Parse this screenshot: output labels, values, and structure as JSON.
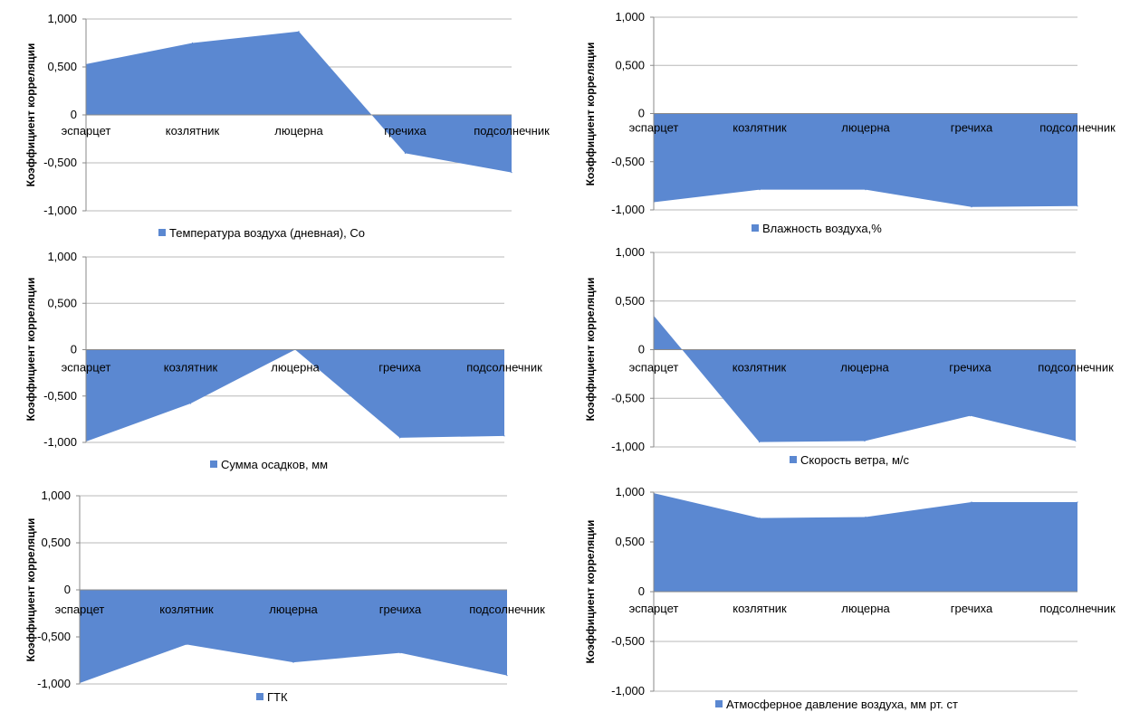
{
  "chart_data": [
    {
      "type": "area",
      "categories": [
        "эспарцет",
        "козлятник",
        "люцерна",
        "гречиха",
        "подсолнечник"
      ],
      "series": [
        {
          "name": "Температура воздуха (дневная), Co",
          "values": [
            0.53,
            0.75,
            0.87,
            -0.4,
            -0.6
          ]
        }
      ],
      "ylabel": "Коэффициент корреляции",
      "ylim": [
        -1,
        1
      ],
      "yticks": [
        "1,000",
        "0,500",
        "0",
        "-0,500",
        "-1,000"
      ],
      "legend": "bottom",
      "color": "#5b88d1"
    },
    {
      "type": "area",
      "categories": [
        "эспарцет",
        "козлятник",
        "люцерна",
        "гречиха",
        "подсолнечник"
      ],
      "series": [
        {
          "name": "Влажность воздуха,%",
          "values": [
            -0.92,
            -0.79,
            -0.79,
            -0.97,
            -0.96
          ]
        }
      ],
      "ylabel": "Коэффициент корреляции",
      "ylim": [
        -1,
        1
      ],
      "yticks": [
        "1,000",
        "0,500",
        "0",
        "-0,500",
        "-1,000"
      ],
      "legend": "bottom",
      "color": "#5b88d1"
    },
    {
      "type": "area",
      "categories": [
        "эспарцет",
        "козлятник",
        "люцерна",
        "гречиха",
        "подсолнечник"
      ],
      "series": [
        {
          "name": "Сумма осадков, мм",
          "values": [
            -0.99,
            -0.58,
            0.0,
            -0.95,
            -0.93
          ]
        }
      ],
      "ylabel": "Коэффициент корреляции",
      "ylim": [
        -1,
        1
      ],
      "yticks": [
        "1,000",
        "0,500",
        "0",
        "-0,500",
        "-1,000"
      ],
      "legend": "bottom",
      "color": "#5b88d1"
    },
    {
      "type": "area",
      "categories": [
        "эспарцет",
        "козлятник",
        "люцерна",
        "гречиха",
        "подсолнечник"
      ],
      "series": [
        {
          "name": "Скорость ветра, м/с",
          "values": [
            0.35,
            -0.95,
            -0.94,
            -0.68,
            -0.94
          ]
        }
      ],
      "ylabel": "Коэффициент корреляции",
      "ylim": [
        -1,
        1
      ],
      "yticks": [
        "1,000",
        "0,500",
        "0",
        "-0,500",
        "-1,000"
      ],
      "legend": "bottom",
      "color": "#5b88d1"
    },
    {
      "type": "area",
      "categories": [
        "эспарцет",
        "козлятник",
        "люцерна",
        "гречиха",
        "подсолнечник"
      ],
      "series": [
        {
          "name": "ГТК",
          "values": [
            -0.99,
            -0.58,
            -0.77,
            -0.67,
            -0.91
          ]
        }
      ],
      "ylabel": "Коэффициент корреляции",
      "ylim": [
        -1,
        1
      ],
      "yticks": [
        "1,000",
        "0,500",
        "0",
        "-0,500",
        "-1,000"
      ],
      "legend": "bottom",
      "color": "#5b88d1"
    },
    {
      "type": "area",
      "categories": [
        "эспарцет",
        "козлятник",
        "люцерна",
        "гречиха",
        "подсолнечник"
      ],
      "series": [
        {
          "name": "Атмосферное давление воздуха, мм рт. ст",
          "values": [
            0.99,
            0.74,
            0.75,
            0.9,
            0.9
          ]
        }
      ],
      "ylabel": "Коэффициент корреляции",
      "ylim": [
        -1,
        1
      ],
      "yticks": [
        "1,000",
        "0,500",
        "0",
        "-0,500",
        "-1,000"
      ],
      "legend": "bottom",
      "color": "#5b88d1"
    }
  ]
}
